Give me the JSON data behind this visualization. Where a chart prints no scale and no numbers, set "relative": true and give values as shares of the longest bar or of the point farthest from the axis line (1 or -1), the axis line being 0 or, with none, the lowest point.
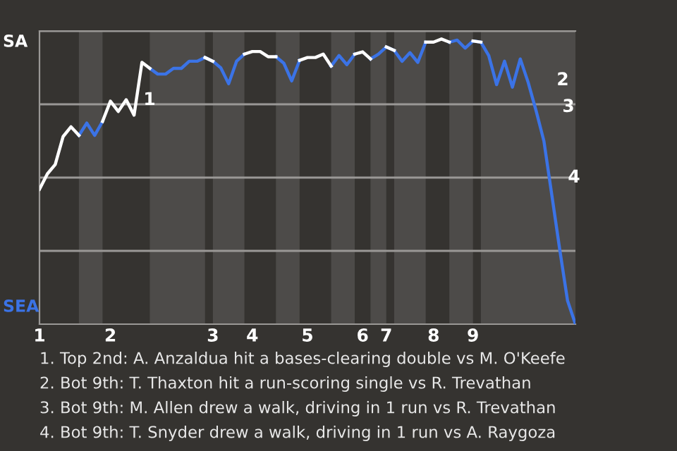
{
  "chart_data": {
    "type": "line",
    "relative": true,
    "categories": [
      "1",
      null,
      null,
      null,
      null,
      null,
      null,
      null,
      null,
      "2",
      null,
      null,
      null,
      null,
      null,
      null,
      null,
      null,
      null,
      null,
      null,
      null,
      "3",
      null,
      null,
      null,
      null,
      "4",
      null,
      null,
      null,
      null,
      null,
      null,
      "5",
      null,
      null,
      null,
      null,
      null,
      null,
      "6",
      null,
      null,
      "7",
      null,
      null,
      null,
      null,
      null,
      "8",
      null,
      null,
      null,
      null,
      "9",
      null,
      null,
      null,
      null,
      null,
      null,
      null,
      null,
      null,
      null,
      null,
      null,
      null
    ],
    "series": [
      {
        "color": "#ffffff",
        "values": [
          0.473,
          0.527,
          0.56,
          0.658,
          0.692,
          0.662,
          null,
          null,
          0.711,
          0.782,
          0.746,
          0.787,
          0.733,
          0.918,
          0.897,
          null,
          null,
          null,
          null,
          null,
          null,
          0.935,
          0.922,
          null,
          null,
          null,
          0.947,
          0.956,
          0.956,
          0.938,
          0.938,
          null,
          null,
          0.925,
          0.935,
          0.935,
          0.947,
          0.905,
          null,
          null,
          0.947,
          0.955,
          0.93,
          null,
          0.972,
          0.96,
          null,
          null,
          null,
          0.989,
          0.989,
          1,
          0.989,
          null,
          null,
          0.993,
          0.989,
          null,
          null,
          null,
          null,
          null,
          null,
          null,
          null,
          null,
          null,
          null,
          null
        ]
      },
      {
        "color": "#3b73e6",
        "values": [
          null,
          null,
          null,
          null,
          null,
          0.662,
          0.705,
          0.662,
          0.711,
          null,
          null,
          null,
          null,
          null,
          0.897,
          0.877,
          0.877,
          0.897,
          0.897,
          0.922,
          0.922,
          0.935,
          0.922,
          0.899,
          0.843,
          0.922,
          0.947,
          null,
          null,
          null,
          0.938,
          0.915,
          0.853,
          0.925,
          null,
          null,
          null,
          0.905,
          0.942,
          0.91,
          0.947,
          null,
          0.93,
          0.947,
          0.972,
          0.96,
          0.922,
          0.952,
          0.918,
          0.989,
          null,
          null,
          0.989,
          0.996,
          0.968,
          0.993,
          0.989,
          0.942,
          0.84,
          0.922,
          0.831,
          0.93,
          0.848,
          0.749,
          0.642,
          0.453,
          0.263,
          0.082,
          0
        ]
      }
    ],
    "ref_lines": [
      {
        "axis": "y",
        "value": 0.257,
        "color": "#9a9896"
      },
      {
        "axis": "y",
        "value": 0.514,
        "color": "#9a9896"
      },
      {
        "axis": "y",
        "value": 0.771,
        "color": "#9a9896"
      },
      {
        "axis": "y",
        "value": 1.028,
        "color": "#9a9896"
      }
    ],
    "annotations": [
      "SA",
      "SEA",
      "1",
      "2",
      "3",
      "4",
      "1. Top 2nd: A. Anzaldua hit a bases-clearing double vs M. O'Keefe",
      "2. Bot 9th: T. Thaxton hit a run-scoring single vs R. Trevathan",
      "3. Bot 9th: M. Allen drew a walk, driving in 1 run vs R. Trevathan",
      "4. Bot 9th: T. Snyder drew a walk, driving in 1 run vs A. Raygoza"
    ],
    "marker": "none",
    "line_style": "solid",
    "legend": false
  }
}
